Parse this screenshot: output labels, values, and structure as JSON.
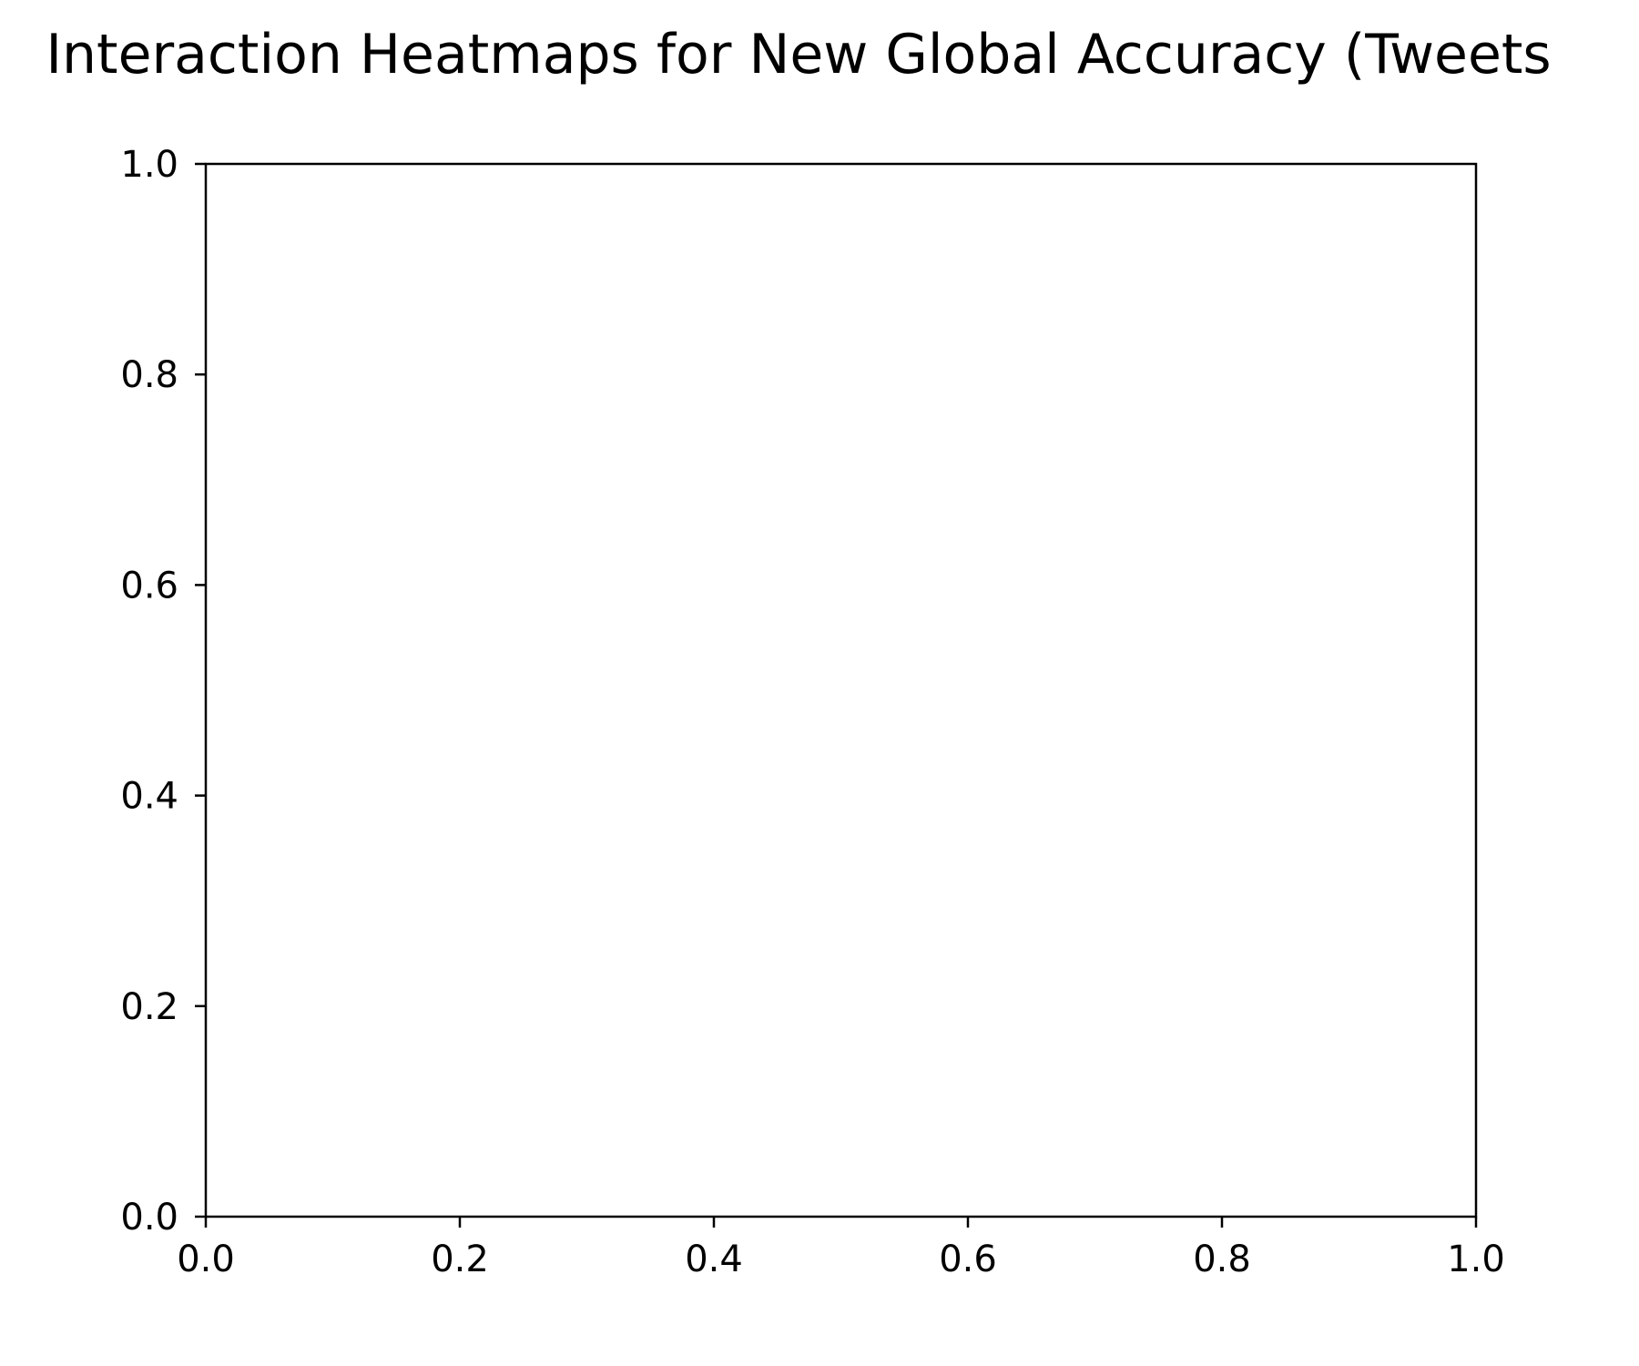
{
  "chart_data": {
    "type": "heatmap",
    "title": "Interaction Heatmaps for New Global Accuracy (Tweets",
    "xlabel": "",
    "ylabel": "",
    "xlim": [
      0.0,
      1.0
    ],
    "ylim": [
      0.0,
      1.0
    ],
    "x_ticks": [
      "0.0",
      "0.2",
      "0.4",
      "0.6",
      "0.8",
      "1.0"
    ],
    "y_ticks": [
      "0.0",
      "0.2",
      "0.4",
      "0.6",
      "0.8",
      "1.0"
    ],
    "values": [],
    "grid": false,
    "legend": false
  }
}
